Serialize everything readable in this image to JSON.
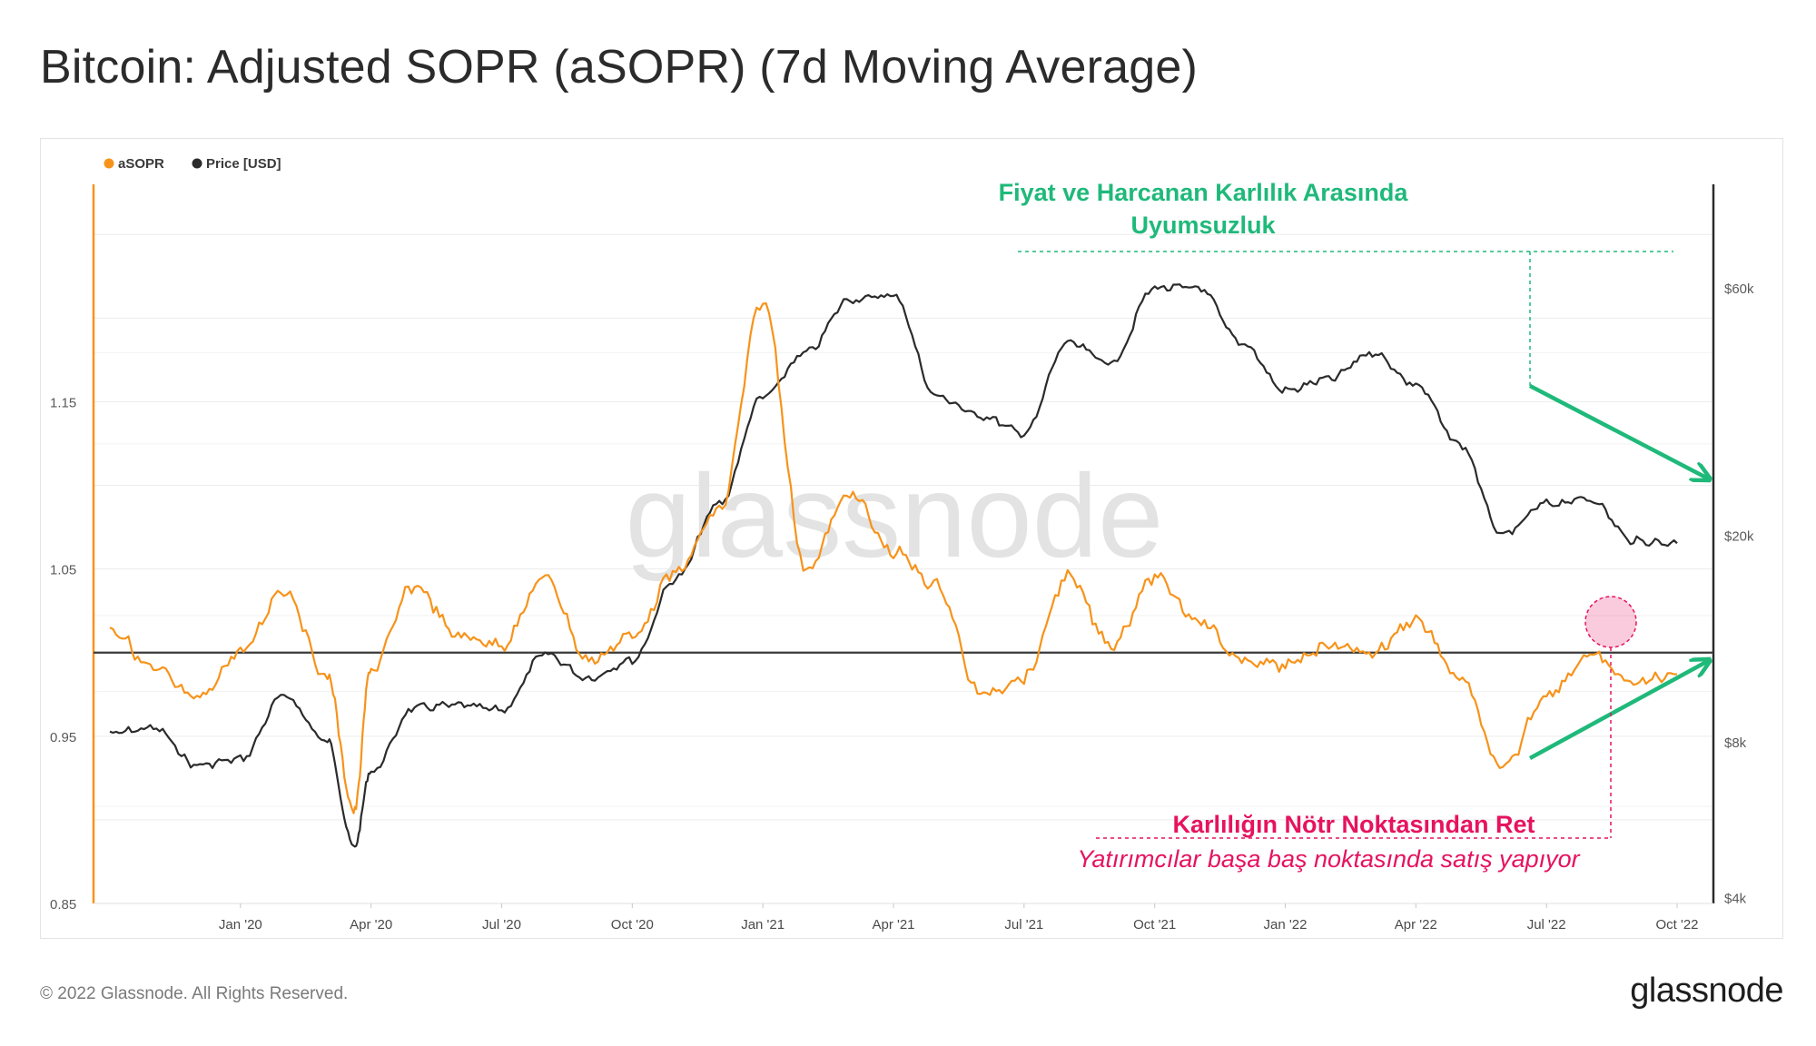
{
  "title": "Bitcoin: Adjusted SOPR (aSOPR) (7d Moving Average)",
  "footer": {
    "copyright": "© 2022 Glassnode. All Rights Reserved.",
    "logo": "glassnode"
  },
  "chart_data": {
    "type": "line",
    "title": "Bitcoin: Adjusted SOPR (aSOPR) (7d Moving Average)",
    "watermark": "glassnode",
    "legend": {
      "position": "top-left",
      "items": [
        {
          "label": "aSOPR",
          "color": "#f7931a"
        },
        {
          "label": "Price [USD]",
          "color": "#2b2b2b"
        }
      ]
    },
    "x_ticks": [
      "Jan '20",
      "Apr '20",
      "Jul '20",
      "Oct '20",
      "Jan '21",
      "Apr '21",
      "Jul '21",
      "Oct '21",
      "Jan '22",
      "Apr '22",
      "Jul '22",
      "Oct '22"
    ],
    "x_range": [
      "Oct '19",
      "Oct '22"
    ],
    "y_left": {
      "label": "aSOPR",
      "ticks": [
        "1.15",
        "1.05",
        "0.95",
        "0.85"
      ],
      "range": [
        0.85,
        1.28
      ],
      "reference_line": 1.0
    },
    "y_right": {
      "label": "Price [USD]",
      "scale": "log",
      "ticks": [
        "$60k",
        "$20k",
        "$8k",
        "$4k"
      ],
      "range": [
        3900,
        95000
      ]
    },
    "series": [
      {
        "name": "aSOPR",
        "axis": "left",
        "color": "#f7931a",
        "points": [
          [
            "Oct '19",
            1.015
          ],
          [
            "Nov '19",
            0.99
          ],
          [
            "Dec '19",
            0.972
          ],
          [
            "Jan '20",
            1.0
          ],
          [
            "Feb '20",
            1.038
          ],
          [
            "Mar '20",
            0.985
          ],
          [
            "Mar '20 (low)",
            0.905
          ],
          [
            "Apr '20",
            0.99
          ],
          [
            "May '20",
            1.04
          ],
          [
            "Jun '20",
            1.01
          ],
          [
            "Jul '20",
            1.005
          ],
          [
            "Aug '20",
            1.045
          ],
          [
            "Sep '20",
            0.995
          ],
          [
            "Oct '20",
            1.01
          ],
          [
            "Nov '20",
            1.048
          ],
          [
            "Dec '20",
            1.085
          ],
          [
            "Jan '21",
            1.21
          ],
          [
            "Feb '21",
            1.05
          ],
          [
            "Mar '21",
            1.095
          ],
          [
            "Apr '21",
            1.06
          ],
          [
            "May '21",
            1.04
          ],
          [
            "Jun '21",
            0.975
          ],
          [
            "Jul '21",
            0.985
          ],
          [
            "Aug '21",
            1.045
          ],
          [
            "Sep '21",
            1.005
          ],
          [
            "Oct '21",
            1.045
          ],
          [
            "Nov '21",
            1.02
          ],
          [
            "Dec '21",
            0.995
          ],
          [
            "Jan '22",
            0.992
          ],
          [
            "Feb '22",
            1.005
          ],
          [
            "Mar '22",
            1.0
          ],
          [
            "Apr '22",
            1.02
          ],
          [
            "May '22",
            0.985
          ],
          [
            "Jun '22",
            0.93
          ],
          [
            "Jul '22",
            0.975
          ],
          [
            "Aug '22",
            0.998
          ],
          [
            "Sep '22",
            0.982
          ],
          [
            "Oct '22",
            0.987
          ]
        ]
      },
      {
        "name": "Price [USD]",
        "axis": "right",
        "color": "#2b2b2b",
        "points": [
          [
            "Oct '19",
            8300
          ],
          [
            "Nov '19",
            8500
          ],
          [
            "Dec '19",
            7200
          ],
          [
            "Jan '20",
            7400
          ],
          [
            "Feb '20",
            9800
          ],
          [
            "Mar '20",
            8000
          ],
          [
            "Mar '20 (low)",
            5000
          ],
          [
            "Apr '20",
            7000
          ],
          [
            "May '20",
            9300
          ],
          [
            "Jun '20",
            9400
          ],
          [
            "Jul '20",
            9200
          ],
          [
            "Aug '20",
            11800
          ],
          [
            "Sep '20",
            10600
          ],
          [
            "Oct '20",
            11500
          ],
          [
            "Nov '20",
            16500
          ],
          [
            "Dec '20",
            23000
          ],
          [
            "Jan '21",
            37000
          ],
          [
            "Feb '21",
            45000
          ],
          [
            "Mar '21",
            57000
          ],
          [
            "Apr '21",
            58000
          ],
          [
            "May '21",
            37000
          ],
          [
            "Jun '21",
            34000
          ],
          [
            "Jul '21",
            31500
          ],
          [
            "Aug '21",
            47000
          ],
          [
            "Sep '21",
            43000
          ],
          [
            "Oct '21",
            60000
          ],
          [
            "Nov '21",
            60000
          ],
          [
            "Dec '21",
            47000
          ],
          [
            "Jan '22",
            38000
          ],
          [
            "Feb '22",
            40000
          ],
          [
            "Mar '22",
            45000
          ],
          [
            "Apr '22",
            39000
          ],
          [
            "May '22",
            30000
          ],
          [
            "Jun '22",
            20000
          ],
          [
            "Jul '22",
            23000
          ],
          [
            "Aug '22",
            23500
          ],
          [
            "Sep '22",
            19500
          ],
          [
            "Oct '22",
            19300
          ]
        ]
      }
    ],
    "annotations": {
      "divergence_title_line1": "Fiyat ve Harcanan Karlılık Arasında",
      "divergence_title_line2": "Uyumsuzluk",
      "rejection_title": "Karlılığın Nötr Noktasından Ret",
      "rejection_subtitle": "Yatırımcılar başa baş noktasında satış yapıyor",
      "divergence_color": "#1fb97a",
      "rejection_color": "#e6135f"
    }
  }
}
